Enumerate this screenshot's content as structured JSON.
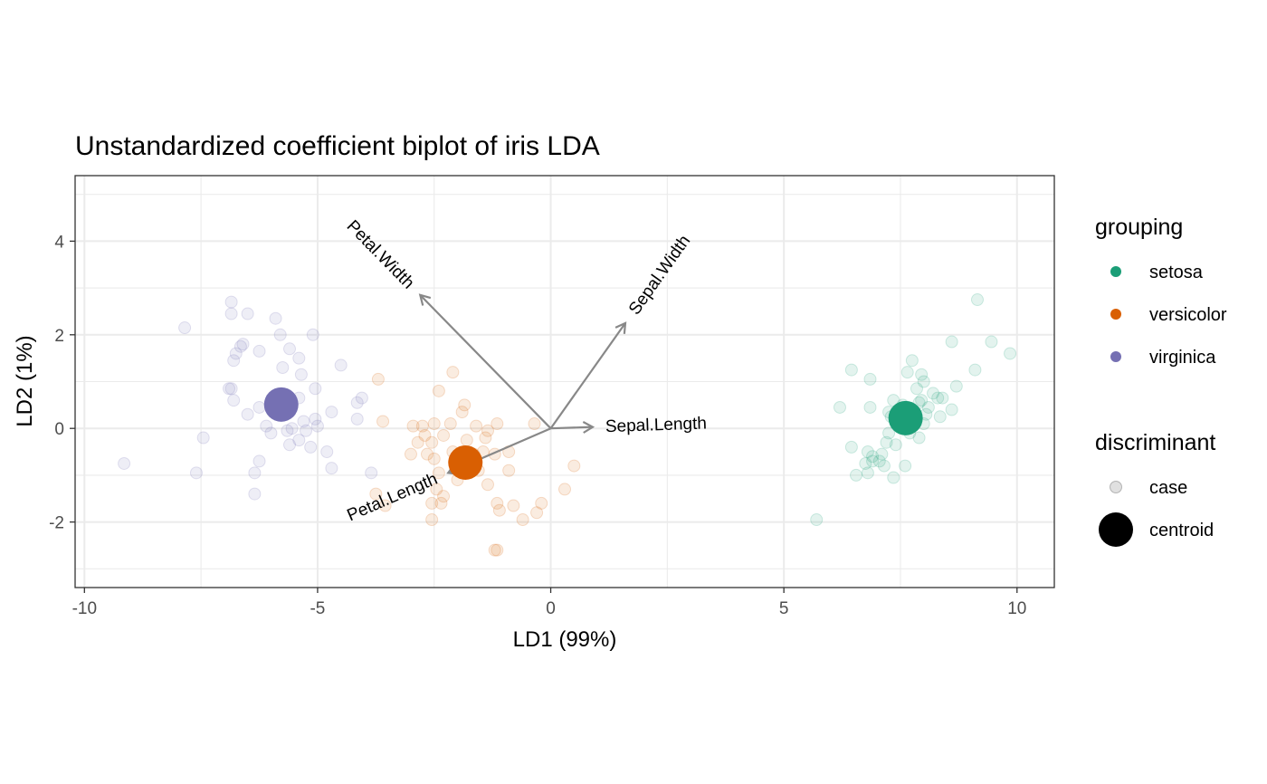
{
  "chart_data": {
    "type": "scatter",
    "title": "Unstandardized coefficient biplot of iris LDA",
    "xlabel": "LD1 (99%)",
    "ylabel": "LD2 (1%)",
    "xlim": [
      -10.2,
      10.8
    ],
    "ylim": [
      -3.4,
      5.4
    ],
    "x_ticks": [
      -10,
      -5,
      0,
      5,
      10
    ],
    "x_tick_labels": [
      "-10",
      "-5",
      "0",
      "5",
      "10"
    ],
    "y_ticks": [
      -2,
      0,
      2,
      4
    ],
    "y_tick_labels": [
      "-2",
      "0",
      "2",
      "4"
    ],
    "grid": true,
    "colors": {
      "setosa": "#1b9e77",
      "versicolor": "#d95f02",
      "virginica": "#7570b3"
    },
    "legend_position": "right",
    "legend": {
      "grouping_title": "grouping",
      "grouping": [
        {
          "label": "setosa",
          "group": "setosa"
        },
        {
          "label": "versicolor",
          "group": "versicolor"
        },
        {
          "label": "virginica",
          "group": "virginica"
        }
      ],
      "discriminant_title": "discriminant",
      "discriminant": [
        {
          "label": "case",
          "kind": "case"
        },
        {
          "label": "centroid",
          "kind": "centroid"
        }
      ]
    },
    "arrows": [
      {
        "label": "Petal.Width",
        "x": -2.8,
        "y": 2.85
      },
      {
        "label": "Sepal.Width",
        "x": 1.6,
        "y": 2.25
      },
      {
        "label": "Sepal.Length",
        "x": 0.9,
        "y": 0.03
      },
      {
        "label": "Petal.Length",
        "x": -2.2,
        "y": -0.95
      }
    ],
    "centroids": [
      {
        "group": "setosa",
        "x": 7.61,
        "y": 0.22
      },
      {
        "group": "versicolor",
        "x": -1.83,
        "y": -0.73
      },
      {
        "group": "virginica",
        "x": -5.78,
        "y": 0.51
      }
    ],
    "series": [
      {
        "name": "setosa",
        "points": [
          [
            9.15,
            2.75
          ],
          [
            9.45,
            1.85
          ],
          [
            9.85,
            1.6
          ],
          [
            8.6,
            1.85
          ],
          [
            7.75,
            1.45
          ],
          [
            7.95,
            1.15
          ],
          [
            9.1,
            1.25
          ],
          [
            7.65,
            1.2
          ],
          [
            6.45,
            1.25
          ],
          [
            6.85,
            1.05
          ],
          [
            8.7,
            0.9
          ],
          [
            8.0,
            1.0
          ],
          [
            7.85,
            0.85
          ],
          [
            8.3,
            0.65
          ],
          [
            8.4,
            0.65
          ],
          [
            8.6,
            0.4
          ],
          [
            8.35,
            0.25
          ],
          [
            8.05,
            0.3
          ],
          [
            8.0,
            0.1
          ],
          [
            7.9,
            -0.2
          ],
          [
            7.7,
            -0.1
          ],
          [
            7.5,
            0.05
          ],
          [
            7.35,
            0.6
          ],
          [
            7.55,
            0.5
          ],
          [
            7.25,
            0.35
          ],
          [
            7.9,
            0.55
          ],
          [
            8.2,
            0.75
          ],
          [
            7.95,
            0.6
          ],
          [
            6.2,
            0.45
          ],
          [
            6.85,
            0.45
          ],
          [
            7.3,
            0.25
          ],
          [
            7.25,
            -0.1
          ],
          [
            7.2,
            -0.3
          ],
          [
            7.4,
            -0.35
          ],
          [
            7.1,
            -0.55
          ],
          [
            6.9,
            -0.6
          ],
          [
            6.8,
            -0.5
          ],
          [
            6.45,
            -0.4
          ],
          [
            6.75,
            -0.75
          ],
          [
            6.9,
            -0.7
          ],
          [
            7.05,
            -0.7
          ],
          [
            7.15,
            -0.8
          ],
          [
            7.6,
            -0.8
          ],
          [
            6.55,
            -1.0
          ],
          [
            6.8,
            -0.95
          ],
          [
            7.35,
            -1.05
          ],
          [
            5.7,
            -1.95
          ],
          [
            7.6,
            0.0
          ],
          [
            8.1,
            0.45
          ],
          [
            7.7,
            0.3
          ]
        ]
      },
      {
        "name": "versicolor",
        "points": [
          [
            -3.7,
            1.05
          ],
          [
            -2.1,
            1.2
          ],
          [
            -2.4,
            0.8
          ],
          [
            -1.85,
            0.5
          ],
          [
            -1.9,
            0.35
          ],
          [
            -3.6,
            0.15
          ],
          [
            -2.95,
            0.05
          ],
          [
            -2.75,
            0.05
          ],
          [
            -2.5,
            0.1
          ],
          [
            -2.15,
            0.1
          ],
          [
            -1.6,
            0.05
          ],
          [
            -1.15,
            0.1
          ],
          [
            -1.35,
            -0.05
          ],
          [
            -1.4,
            -0.2
          ],
          [
            -1.8,
            -0.25
          ],
          [
            -2.3,
            -0.15
          ],
          [
            -2.55,
            -0.3
          ],
          [
            -2.85,
            -0.3
          ],
          [
            -2.7,
            -0.15
          ],
          [
            -3.0,
            -0.55
          ],
          [
            -2.65,
            -0.55
          ],
          [
            -2.5,
            -0.65
          ],
          [
            -2.1,
            -0.5
          ],
          [
            -1.65,
            -0.55
          ],
          [
            -1.45,
            -0.5
          ],
          [
            -1.2,
            -0.55
          ],
          [
            -0.9,
            -0.5
          ],
          [
            -0.35,
            0.1
          ],
          [
            -0.9,
            -0.9
          ],
          [
            -1.55,
            -0.9
          ],
          [
            -1.35,
            -1.2
          ],
          [
            -2.0,
            -1.1
          ],
          [
            -2.4,
            -0.95
          ],
          [
            -2.45,
            -1.3
          ],
          [
            -2.3,
            -1.45
          ],
          [
            -2.35,
            -1.6
          ],
          [
            -2.55,
            -1.6
          ],
          [
            -3.75,
            -1.4
          ],
          [
            -3.55,
            -1.65
          ],
          [
            -2.55,
            -1.95
          ],
          [
            -1.15,
            -1.6
          ],
          [
            -1.1,
            -1.75
          ],
          [
            -0.8,
            -1.65
          ],
          [
            -0.6,
            -1.95
          ],
          [
            -0.3,
            -1.8
          ],
          [
            -0.2,
            -1.6
          ],
          [
            0.3,
            -1.3
          ],
          [
            0.5,
            -0.8
          ],
          [
            -1.15,
            -2.6
          ],
          [
            -1.2,
            -2.6
          ]
        ]
      },
      {
        "name": "virginica",
        "points": [
          [
            -6.85,
            2.7
          ],
          [
            -6.85,
            2.45
          ],
          [
            -6.5,
            2.45
          ],
          [
            -5.9,
            2.35
          ],
          [
            -7.85,
            2.15
          ],
          [
            -5.8,
            2.0
          ],
          [
            -5.1,
            2.0
          ],
          [
            -6.6,
            1.8
          ],
          [
            -6.65,
            1.75
          ],
          [
            -6.25,
            1.65
          ],
          [
            -5.6,
            1.7
          ],
          [
            -6.75,
            1.6
          ],
          [
            -6.8,
            1.45
          ],
          [
            -5.4,
            1.5
          ],
          [
            -5.75,
            1.3
          ],
          [
            -4.5,
            1.35
          ],
          [
            -5.35,
            1.15
          ],
          [
            -6.85,
            0.85
          ],
          [
            -6.9,
            0.85
          ],
          [
            -5.05,
            0.85
          ],
          [
            -4.05,
            0.65
          ],
          [
            -4.15,
            0.55
          ],
          [
            -5.4,
            0.65
          ],
          [
            -6.25,
            0.45
          ],
          [
            -6.8,
            0.6
          ],
          [
            -6.5,
            0.3
          ],
          [
            -5.85,
            0.3
          ],
          [
            -5.6,
            0.35
          ],
          [
            -5.3,
            0.15
          ],
          [
            -5.05,
            0.2
          ],
          [
            -4.7,
            0.35
          ],
          [
            -4.15,
            0.2
          ],
          [
            -6.1,
            0.05
          ],
          [
            -5.65,
            -0.05
          ],
          [
            -5.55,
            0.0
          ],
          [
            -5.25,
            -0.05
          ],
          [
            -5.0,
            0.05
          ],
          [
            -7.45,
            -0.2
          ],
          [
            -6.0,
            -0.1
          ],
          [
            -5.6,
            -0.35
          ],
          [
            -5.4,
            -0.25
          ],
          [
            -5.15,
            -0.4
          ],
          [
            -4.8,
            -0.5
          ],
          [
            -6.25,
            -0.7
          ],
          [
            -6.35,
            -0.95
          ],
          [
            -7.6,
            -0.95
          ],
          [
            -9.15,
            -0.75
          ],
          [
            -4.7,
            -0.85
          ],
          [
            -3.85,
            -0.95
          ],
          [
            -6.35,
            -1.4
          ]
        ]
      }
    ]
  }
}
